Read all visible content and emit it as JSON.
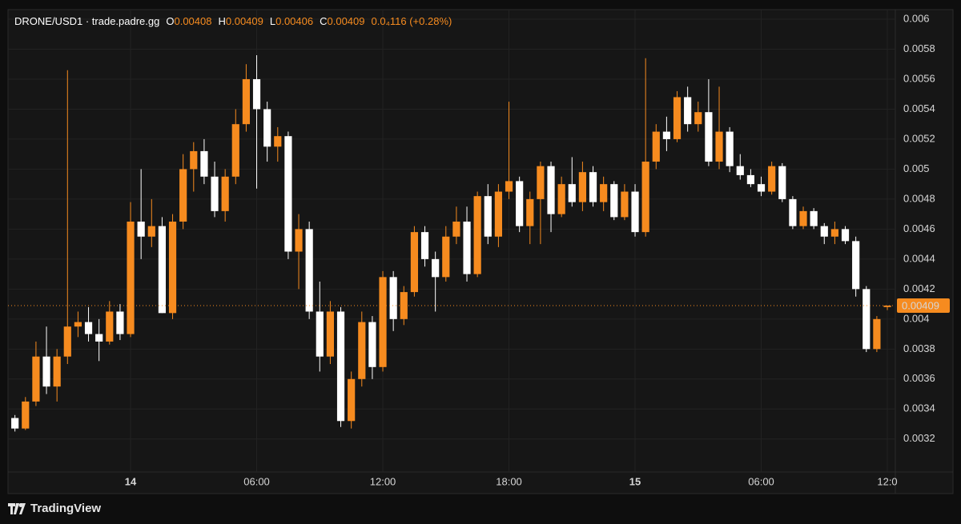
{
  "header": {
    "symbol": "DRONE/USD1 · trade.padre.gg",
    "fields": [
      {
        "key": "O",
        "value": "0.00408"
      },
      {
        "key": "H",
        "value": "0.00409"
      },
      {
        "key": "L",
        "value": "0.00406"
      },
      {
        "key": "C",
        "value": "0.00409"
      }
    ],
    "change": "0.0₄116 (+0.28%)"
  },
  "watermark": "TradingView",
  "chart_data": {
    "type": "candlestick",
    "up_color": "#f68b1f",
    "down_color": "#ffffff",
    "grid": true,
    "last_price": 0.00409,
    "x": [
      -5.5,
      -5,
      -4.5,
      -4,
      -3.5,
      -3,
      -2.5,
      -2,
      -1.5,
      -1,
      -0.5,
      0,
      0.5,
      1,
      1.5,
      2,
      2.5,
      3,
      3.5,
      4,
      4.5,
      5,
      5.5,
      6,
      6.5,
      7,
      7.5,
      8,
      8.5,
      9,
      9.5,
      10,
      10.5,
      11,
      11.5,
      12,
      12.5,
      13,
      13.5,
      14,
      14.5,
      15,
      15.5,
      16,
      16.5,
      17,
      17.5,
      18,
      18.5,
      19,
      19.5,
      20,
      20.5,
      21,
      21.5,
      22,
      22.5,
      23,
      23.5,
      24,
      24.5,
      25,
      25.5,
      26,
      26.5,
      27,
      27.5,
      28,
      28.5,
      29,
      29.5,
      30,
      30.5,
      31,
      31.5,
      32,
      32.5,
      33,
      33.5,
      34,
      34.5,
      35,
      35.5,
      36
    ],
    "open": [
      0.00334,
      0.00327,
      0.00345,
      0.00375,
      0.00355,
      0.00375,
      0.00395,
      0.00398,
      0.0039,
      0.00385,
      0.00405,
      0.0039,
      0.00465,
      0.00455,
      0.00462,
      0.00404,
      0.00465,
      0.005,
      0.00512,
      0.00495,
      0.00472,
      0.00495,
      0.0053,
      0.0056,
      0.0054,
      0.00515,
      0.00522,
      0.00445,
      0.0046,
      0.00405,
      0.00375,
      0.00405,
      0.00332,
      0.0036,
      0.00398,
      0.00368,
      0.00428,
      0.004,
      0.00418,
      0.00458,
      0.0044,
      0.00428,
      0.00455,
      0.00465,
      0.0043,
      0.00482,
      0.00455,
      0.00485,
      0.00492,
      0.00462,
      0.0048,
      0.00502,
      0.0047,
      0.0049,
      0.00478,
      0.00498,
      0.00478,
      0.0049,
      0.00468,
      0.00485,
      0.00458,
      0.00505,
      0.00525,
      0.0052,
      0.00548,
      0.0053,
      0.00538,
      0.00505,
      0.00525,
      0.00502,
      0.00496,
      0.0049,
      0.00485,
      0.00502,
      0.0048,
      0.00462,
      0.00472,
      0.00462,
      0.00455,
      0.0046,
      0.00452,
      0.0042,
      0.0038,
      0.00408
    ],
    "high": [
      0.00336,
      0.00348,
      0.00385,
      0.00395,
      0.0038,
      0.00566,
      0.00405,
      0.00408,
      0.004,
      0.00412,
      0.0041,
      0.00478,
      0.005,
      0.0048,
      0.00468,
      0.0047,
      0.0051,
      0.00518,
      0.0052,
      0.00505,
      0.005,
      0.0054,
      0.0057,
      0.00576,
      0.00545,
      0.00528,
      0.00525,
      0.0047,
      0.00465,
      0.00425,
      0.00412,
      0.00408,
      0.00365,
      0.00405,
      0.00402,
      0.00432,
      0.00432,
      0.00422,
      0.00462,
      0.00462,
      0.00445,
      0.00462,
      0.00475,
      0.00475,
      0.00485,
      0.0049,
      0.0049,
      0.00545,
      0.00495,
      0.00485,
      0.00505,
      0.00505,
      0.00495,
      0.00508,
      0.00505,
      0.00502,
      0.00495,
      0.00492,
      0.0049,
      0.0049,
      0.00574,
      0.0053,
      0.00535,
      0.00552,
      0.00555,
      0.00545,
      0.0056,
      0.00555,
      0.00528,
      0.0051,
      0.005,
      0.00495,
      0.00505,
      0.00504,
      0.00482,
      0.00475,
      0.00474,
      0.00464,
      0.00465,
      0.00462,
      0.00455,
      0.00422,
      0.00402,
      0.00409
    ],
    "low": [
      0.00325,
      0.00326,
      0.00342,
      0.0035,
      0.00345,
      0.0037,
      0.00388,
      0.00385,
      0.00372,
      0.00383,
      0.00386,
      0.00388,
      0.0044,
      0.00448,
      0.00404,
      0.004,
      0.0046,
      0.00485,
      0.0049,
      0.00468,
      0.00465,
      0.0049,
      0.00525,
      0.00487,
      0.00505,
      0.00505,
      0.0044,
      0.0042,
      0.004,
      0.00365,
      0.0037,
      0.00328,
      0.00327,
      0.00355,
      0.0036,
      0.00365,
      0.00392,
      0.00396,
      0.00415,
      0.00435,
      0.00405,
      0.00425,
      0.0045,
      0.00425,
      0.00428,
      0.0045,
      0.00448,
      0.0048,
      0.00458,
      0.0045,
      0.0045,
      0.00458,
      0.00468,
      0.00475,
      0.00472,
      0.00475,
      0.00472,
      0.00466,
      0.00466,
      0.00455,
      0.00455,
      0.005,
      0.00512,
      0.00518,
      0.00525,
      0.00525,
      0.00502,
      0.005,
      0.00498,
      0.00493,
      0.00488,
      0.00482,
      0.00483,
      0.00478,
      0.0046,
      0.0046,
      0.0046,
      0.0045,
      0.0045,
      0.0045,
      0.00415,
      0.00378,
      0.00378,
      0.00406
    ],
    "close": [
      0.00327,
      0.00345,
      0.00375,
      0.00355,
      0.00375,
      0.00395,
      0.00398,
      0.0039,
      0.00385,
      0.00405,
      0.0039,
      0.00465,
      0.00455,
      0.00462,
      0.00404,
      0.00465,
      0.005,
      0.00512,
      0.00495,
      0.00472,
      0.00495,
      0.0053,
      0.0056,
      0.0054,
      0.00515,
      0.00522,
      0.00445,
      0.0046,
      0.00405,
      0.00375,
      0.00405,
      0.00332,
      0.0036,
      0.00398,
      0.00368,
      0.00428,
      0.004,
      0.00418,
      0.00458,
      0.0044,
      0.00428,
      0.00455,
      0.00465,
      0.0043,
      0.00482,
      0.00455,
      0.00485,
      0.00492,
      0.00462,
      0.0048,
      0.00502,
      0.0047,
      0.0049,
      0.00478,
      0.00498,
      0.00478,
      0.0049,
      0.00468,
      0.00485,
      0.00458,
      0.00505,
      0.00525,
      0.0052,
      0.00548,
      0.0053,
      0.00538,
      0.00505,
      0.00525,
      0.00502,
      0.00496,
      0.0049,
      0.00485,
      0.00502,
      0.0048,
      0.00462,
      0.00472,
      0.00462,
      0.00455,
      0.0046,
      0.00452,
      0.0042,
      0.0038,
      0.004,
      0.00409
    ],
    "xlim": [
      -5.83,
      36.38
    ],
    "xticks": [
      {
        "value": 0,
        "label": "14"
      },
      {
        "value": 6,
        "label": "06:00"
      },
      {
        "value": 12,
        "label": "12:00"
      },
      {
        "value": 18,
        "label": "18:00"
      },
      {
        "value": 24,
        "label": "15"
      },
      {
        "value": 30,
        "label": "06:00"
      },
      {
        "value": 36,
        "label": "12:0"
      }
    ],
    "ylim": [
      0.00298,
      0.006064
    ],
    "yticks": [
      0.0032,
      0.0034,
      0.0036,
      0.0038,
      0.004,
      0.0042,
      0.0044,
      0.0046,
      0.0048,
      0.005,
      0.0052,
      0.0054,
      0.0056,
      0.0058,
      0.006
    ]
  }
}
